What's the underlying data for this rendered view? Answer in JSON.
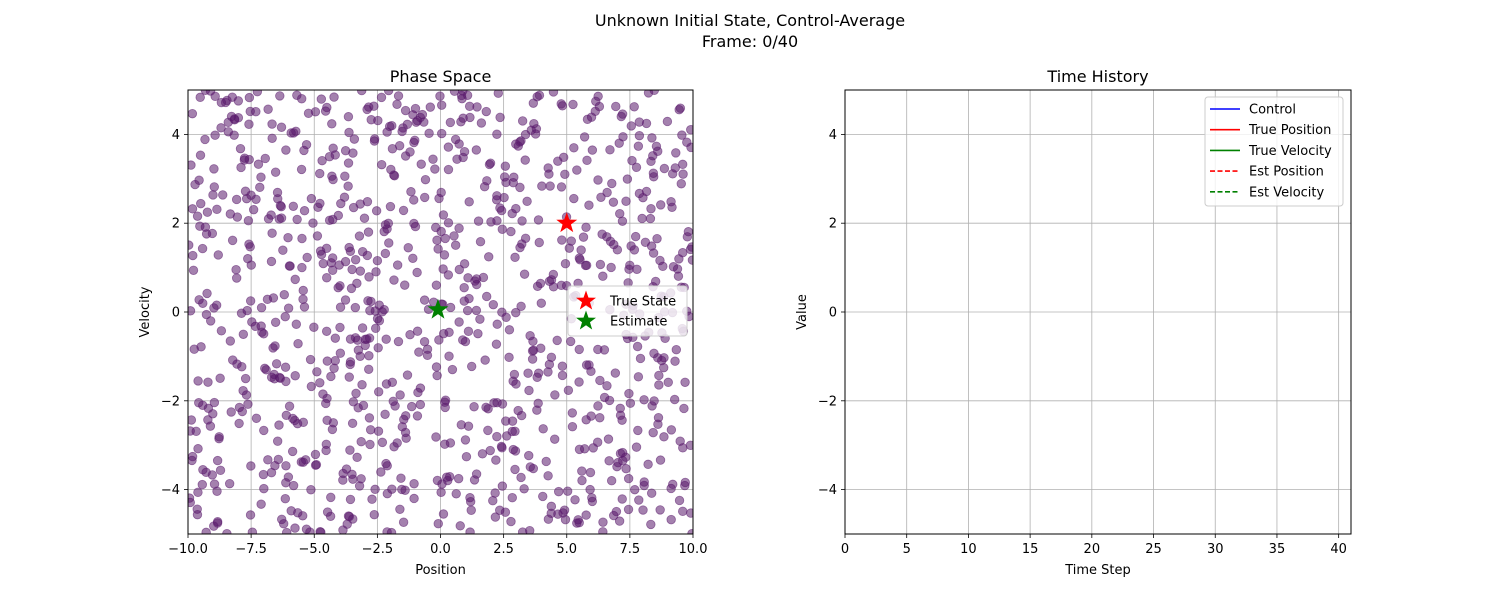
{
  "figure": {
    "title_line1": "Unknown Initial State, Control-Average",
    "title_line2": "Frame: 0/40"
  },
  "chart_data": [
    {
      "type": "scatter",
      "title": "Phase Space",
      "xlabel": "Position",
      "ylabel": "Velocity",
      "xlim": [
        -10,
        10
      ],
      "ylim": [
        -5,
        5
      ],
      "xticks": [
        -10,
        -7.5,
        -5,
        -2.5,
        0,
        2.5,
        5,
        7.5,
        10
      ],
      "xtick_labels": [
        "−10.0",
        "−7.5",
        "−5.0",
        "−2.5",
        "0.0",
        "2.5",
        "5.0",
        "7.5",
        "10.0"
      ],
      "yticks": [
        -4,
        -2,
        0,
        2,
        4
      ],
      "ytick_labels": [
        "−4",
        "−2",
        "0",
        "2",
        "4"
      ],
      "grid": true,
      "legend_position": "center-right",
      "particles": {
        "count": 1000,
        "distribution": "uniform",
        "x_range": [
          -10,
          10
        ],
        "y_range": [
          -5,
          5
        ],
        "color": "#5a1a6b"
      },
      "series": [
        {
          "name": "True State",
          "marker": "star",
          "color": "#ff0000",
          "points": [
            {
              "x": 5.0,
              "y": 2.0
            }
          ]
        },
        {
          "name": "Estimate",
          "marker": "star",
          "color": "#008000",
          "points": [
            {
              "x": -0.1,
              "y": 0.05
            }
          ]
        }
      ]
    },
    {
      "type": "line",
      "title": "Time History",
      "xlabel": "Time Step",
      "ylabel": "Value",
      "xlim": [
        0,
        41
      ],
      "ylim": [
        -5,
        5
      ],
      "xticks": [
        0,
        5,
        10,
        15,
        20,
        25,
        30,
        35,
        40
      ],
      "xtick_labels": [
        "0",
        "5",
        "10",
        "15",
        "20",
        "25",
        "30",
        "35",
        "40"
      ],
      "yticks": [
        -4,
        -2,
        0,
        2,
        4
      ],
      "ytick_labels": [
        "−4",
        "−2",
        "0",
        "2",
        "4"
      ],
      "grid": true,
      "legend_position": "top-right",
      "series": [
        {
          "name": "Control",
          "color": "#0000ff",
          "style": "solid",
          "x": [],
          "y": []
        },
        {
          "name": "True Position",
          "color": "#ff0000",
          "style": "solid",
          "x": [],
          "y": []
        },
        {
          "name": "True Velocity",
          "color": "#008000",
          "style": "solid",
          "x": [],
          "y": []
        },
        {
          "name": "Est Position",
          "color": "#ff0000",
          "style": "dashed",
          "x": [],
          "y": []
        },
        {
          "name": "Est Velocity",
          "color": "#008000",
          "style": "dashed",
          "x": [],
          "y": []
        }
      ]
    }
  ]
}
